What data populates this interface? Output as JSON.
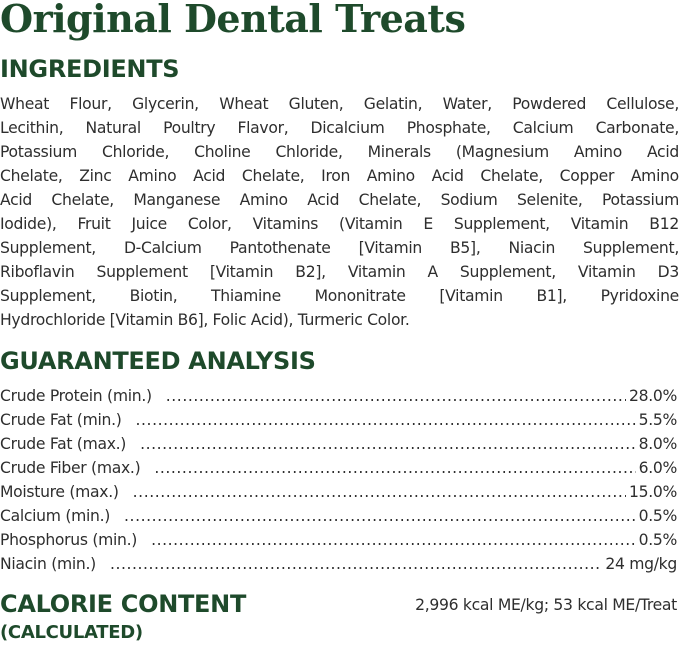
{
  "title": "Original Dental Treats",
  "ingredients": {
    "heading": "INGREDIENTS",
    "lines": [
      "Wheat Flour, Glycerin, Wheat Gluten, Gelatin, Water, Powdered Cellulose,",
      "Lecithin, Natural Poultry Flavor, Dicalcium Phosphate, Calcium Carbonate,",
      "Potassium Chloride, Choline Chloride, Minerals (Magnesium Amino Acid",
      "Chelate, Zinc Amino Acid Chelate, Iron Amino Acid Chelate, Copper Amino",
      "Acid Chelate, Manganese Amino Acid Chelate, Sodium Selenite, Potassium",
      "Iodide), Fruit Juice Color, Vitamins (Vitamin E Supplement, Vitamin B12",
      "Supplement, D-Calcium Pantothenate [Vitamin B5], Niacin Supplement,",
      "Riboflavin Supplement [Vitamin B2], Vitamin A Supplement, Vitamin D3",
      "Supplement, Biotin, Thiamine Mononitrate [Vitamin B1], Pyridoxine",
      "Hydrochloride [Vitamin B6], Folic Acid), Turmeric Color."
    ]
  },
  "analysis": {
    "heading": "GUARANTEED ANALYSIS",
    "rows": [
      {
        "label": "Crude Protein (min.)",
        "value": "28.0%"
      },
      {
        "label": "Crude Fat (min.)",
        "value": "5.5%"
      },
      {
        "label": "Crude Fat (max.)",
        "value": "8.0%"
      },
      {
        "label": "Crude Fiber (max.)",
        "value": "6.0%"
      },
      {
        "label": "Moisture (max.)",
        "value": "15.0%"
      },
      {
        "label": "Calcium (min.)",
        "value": "0.5%"
      },
      {
        "label": "Phosphorus (min.)",
        "value": "0.5%"
      },
      {
        "label": "Niacin (min.)",
        "value": "24 mg/kg"
      }
    ]
  },
  "calorie": {
    "heading": "CALORIE CONTENT",
    "subheading": "(CALCULATED)",
    "value": "2,996 kcal ME/kg; 53 kcal ME/Treat"
  },
  "colors": {
    "heading": "#1e4a2b",
    "body": "#2e2e2e"
  }
}
